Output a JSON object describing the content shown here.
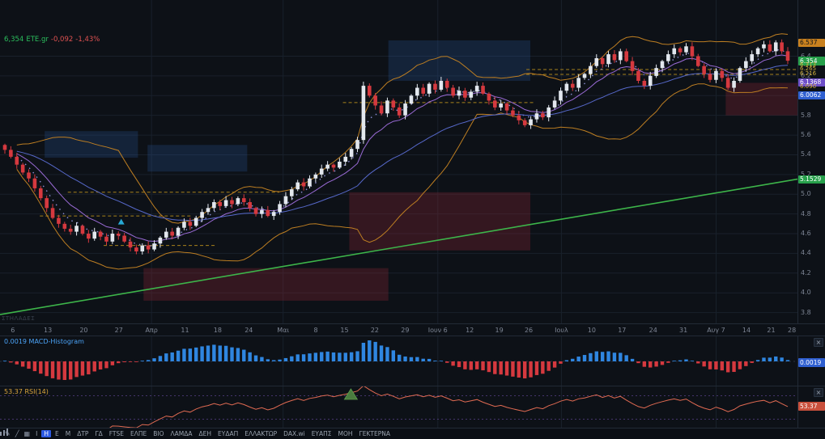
{
  "ticker": {
    "price": "6,354",
    "symbol": "ETE.gr",
    "change": "-0,092",
    "change_pct": "-1,43%"
  },
  "watermark": "ΣΤΗΛΑΔΕΣ",
  "icons": {
    "close": "×"
  },
  "theme": {
    "bg": "#0d1117",
    "panel_border": "#222a36",
    "grid": "#19202b",
    "up_candle": "#e2e7ee",
    "down_candle": "#d5393f",
    "bollinger": "#bd7e22",
    "ma_fast": "#9a6bd6",
    "ma_slow": "#5668c9",
    "ma_dots": "#8d8fd6",
    "trendline": "#3db54a",
    "zone_blue": "rgba(41,85,152,0.27)",
    "zone_red": "rgba(143,39,53,0.30)",
    "level_dash": "#a8821c",
    "macd_pos": "#2f86e0",
    "macd_neg": "#d5393f",
    "rsi_line": "#e06a52",
    "rsi_level": "rgba(126,87,194,0.5)",
    "axis_text": "#7d8594",
    "ticker_green": "#2bbf5d",
    "ticker_red": "#e05252",
    "label_blue": "#4ba3f7",
    "label_yellow": "#d9a43c",
    "marker_green": "#4a7c3f",
    "buy_marker": "#27a9d4"
  },
  "chart_data": {
    "type": "candlestick",
    "symbol": "ETE.gr",
    "price_range": {
      "top": 6.97,
      "bottom": 3.69
    },
    "axis_ticks": [
      6.4,
      6.2,
      6.0,
      5.8,
      5.6,
      5.4,
      5.2,
      5.0,
      4.8,
      4.6,
      4.4,
      4.2,
      4.0,
      3.8
    ],
    "axis_badges": [
      {
        "label": "6.537",
        "price": 6.537,
        "bg": "#c9811f",
        "fg": "#101418"
      },
      {
        "label": "6.354",
        "price": 6.354,
        "bg": "#27a04b",
        "fg": "#ffffff"
      },
      {
        "label": "6.313",
        "price": 6.313,
        "bg": "",
        "fg": "#d2b13e"
      },
      {
        "label": "6.265",
        "price": 6.265,
        "bg": "",
        "fg": "#d2b13e"
      },
      {
        "label": "6.216",
        "price": 6.216,
        "bg": "",
        "fg": "#d2b13e"
      },
      {
        "label": "6.1368",
        "price": 6.1368,
        "bg": "#6e4fc9",
        "fg": "#ffffff"
      },
      {
        "label": "6.090",
        "price": 6.09,
        "bg": "",
        "fg": "#d2b13e"
      },
      {
        "label": "6.0062",
        "price": 6.0062,
        "bg": "#2f5fd0",
        "fg": "#ffffff"
      },
      {
        "label": "5.1529",
        "price": 5.1529,
        "bg": "#27a04b",
        "fg": "#ffffff"
      }
    ],
    "time_labels": [
      {
        "t": "6",
        "p": 0.016
      },
      {
        "t": "13",
        "p": 0.06
      },
      {
        "t": "20",
        "p": 0.105
      },
      {
        "t": "27",
        "p": 0.149
      },
      {
        "t": "Απρ",
        "p": 0.19
      },
      {
        "t": "11",
        "p": 0.232
      },
      {
        "t": "18",
        "p": 0.273
      },
      {
        "t": "24",
        "p": 0.312
      },
      {
        "t": "Μαι",
        "p": 0.355
      },
      {
        "t": "8",
        "p": 0.396
      },
      {
        "t": "15",
        "p": 0.432
      },
      {
        "t": "22",
        "p": 0.47
      },
      {
        "t": "29",
        "p": 0.508
      },
      {
        "t": "Ιουν 6",
        "p": 0.549
      },
      {
        "t": "12",
        "p": 0.589
      },
      {
        "t": "19",
        "p": 0.626
      },
      {
        "t": "26",
        "p": 0.663
      },
      {
        "t": "Ιουλ",
        "p": 0.704
      },
      {
        "t": "10",
        "p": 0.742
      },
      {
        "t": "17",
        "p": 0.78
      },
      {
        "t": "24",
        "p": 0.819
      },
      {
        "t": "31",
        "p": 0.857
      },
      {
        "t": "Αυγ 7",
        "p": 0.898
      },
      {
        "t": "14",
        "p": 0.936
      },
      {
        "t": "21",
        "p": 0.967
      },
      {
        "t": "28",
        "p": 0.993
      }
    ],
    "month_gridlines": [
      0.19,
      0.355,
      0.549,
      0.704,
      0.898
    ],
    "closes": [
      5.45,
      5.38,
      5.3,
      5.22,
      5.16,
      5.06,
      4.96,
      4.86,
      4.76,
      4.7,
      4.65,
      4.62,
      4.68,
      4.6,
      4.55,
      4.62,
      4.57,
      4.52,
      4.6,
      4.58,
      4.52,
      4.46,
      4.42,
      4.48,
      4.44,
      4.5,
      4.56,
      4.62,
      4.58,
      4.66,
      4.72,
      4.68,
      4.76,
      4.82,
      4.86,
      4.92,
      4.88,
      4.94,
      4.9,
      4.96,
      4.92,
      4.86,
      4.8,
      4.84,
      4.78,
      4.82,
      4.9,
      4.98,
      5.05,
      5.12,
      5.08,
      5.16,
      5.2,
      5.26,
      5.3,
      5.27,
      5.33,
      5.38,
      5.46,
      5.55,
      6.1,
      6.0,
      5.9,
      5.82,
      5.95,
      5.88,
      5.8,
      5.92,
      6.0,
      6.08,
      6.02,
      6.12,
      6.06,
      6.15,
      6.08,
      6.0,
      6.05,
      5.98,
      6.04,
      6.1,
      6.02,
      5.95,
      5.88,
      5.92,
      5.85,
      5.8,
      5.75,
      5.7,
      5.76,
      5.82,
      5.78,
      5.88,
      5.95,
      6.05,
      6.12,
      6.08,
      6.18,
      6.22,
      6.3,
      6.38,
      6.32,
      6.42,
      6.36,
      6.45,
      6.35,
      6.25,
      6.15,
      6.1,
      6.2,
      6.28,
      6.35,
      6.42,
      6.48,
      6.44,
      6.5,
      6.4,
      6.3,
      6.22,
      6.16,
      6.25,
      6.18,
      6.08,
      6.15,
      6.28,
      6.35,
      6.42,
      6.48,
      6.52,
      6.45,
      6.54,
      6.45,
      6.354
    ],
    "zones": [
      {
        "x1": 0.056,
        "x2": 0.173,
        "p_top": 5.64,
        "p_bottom": 5.37,
        "kind": "blue"
      },
      {
        "x1": 0.185,
        "x2": 0.31,
        "p_top": 5.5,
        "p_bottom": 5.23,
        "kind": "blue"
      },
      {
        "x1": 0.487,
        "x2": 0.665,
        "p_top": 6.56,
        "p_bottom": 6.15,
        "kind": "blue"
      },
      {
        "x1": 0.18,
        "x2": 0.487,
        "p_top": 4.25,
        "p_bottom": 3.92,
        "kind": "red"
      },
      {
        "x1": 0.438,
        "x2": 0.665,
        "p_top": 5.02,
        "p_bottom": 4.43,
        "kind": "red"
      },
      {
        "x1": 0.91,
        "x2": 1.0,
        "p_top": 6.13,
        "p_bottom": 5.8,
        "kind": "red"
      }
    ],
    "support_levels": [
      {
        "x1": 0.66,
        "x2": 1.0,
        "price": 6.265
      },
      {
        "x1": 0.66,
        "x2": 1.0,
        "price": 6.216
      },
      {
        "x1": 0.43,
        "x2": 0.67,
        "price": 5.93
      },
      {
        "x1": 0.085,
        "x2": 0.35,
        "price": 5.02
      },
      {
        "x1": 0.05,
        "x2": 0.24,
        "price": 4.78
      },
      {
        "x1": 0.13,
        "x2": 0.27,
        "price": 4.48
      }
    ],
    "trendline": {
      "x1": 0.0,
      "price1": 3.78,
      "x2": 1.0,
      "price2": 5.153
    },
    "buy_marker": {
      "x": 0.152,
      "price": 4.71
    },
    "macd": {
      "value": "0.0019",
      "name": "MACD-Histogram",
      "badge_bg": "#2f5fd0"
    },
    "rsi": {
      "value": "53.37",
      "name": "RSI(14)",
      "period": 14,
      "badge_bg": "#c9503c",
      "levels": [
        70,
        30
      ],
      "signal_marker_x": 0.44
    }
  },
  "toolbar": {
    "draw_icons": [
      {
        "name": "pencil-icon",
        "glyph": "✎"
      },
      {
        "name": "trendline-icon",
        "glyph": "╱"
      },
      {
        "name": "grid-icon",
        "glyph": "▦"
      }
    ],
    "tabs": [
      {
        "label": "Ι",
        "active": false
      },
      {
        "label": "Η",
        "active": true
      },
      {
        "label": "Ε",
        "active": false
      },
      {
        "label": "Μ",
        "active": false
      },
      {
        "label": "ΔΤΡ",
        "active": false
      },
      {
        "label": "ΓΔ",
        "active": false
      },
      {
        "label": "FTSE",
        "active": false
      },
      {
        "label": "ΕΛΠΕ",
        "active": false
      },
      {
        "label": "ΒΙΟ",
        "active": false
      },
      {
        "label": "ΛΑΜΔΑ",
        "active": false
      },
      {
        "label": "ΔΕΗ",
        "active": false
      },
      {
        "label": "ΕΥΔΑΠ",
        "active": false
      },
      {
        "label": "ΕΛΛΑΚΤΩΡ",
        "active": false
      },
      {
        "label": "DAX.wi",
        "active": false
      },
      {
        "label": "ΕΥΑΠΣ",
        "active": false
      },
      {
        "label": "ΜΟΗ",
        "active": false
      },
      {
        "label": "ΓΕΚΤΕΡΝΑ",
        "active": false
      }
    ]
  }
}
